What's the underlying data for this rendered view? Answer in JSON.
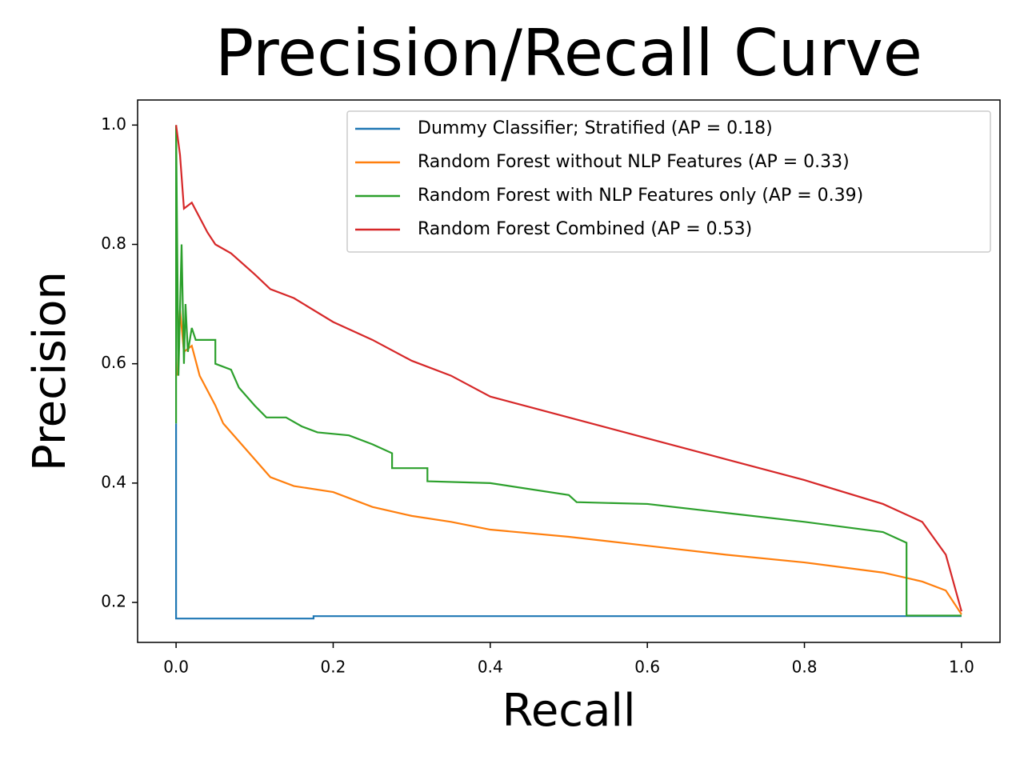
{
  "chart_data": {
    "type": "line",
    "title": "Precision/Recall Curve",
    "x_label": "Recall",
    "y_label": "Precision",
    "xlim": [
      -0.049,
      1.049
    ],
    "ylim": [
      0.133,
      1.042
    ],
    "xticks": [
      {
        "value": 0,
        "label": "0.0"
      },
      0.2,
      0.4,
      0.6,
      0.8,
      {
        "value": 1,
        "label": "1.0"
      }
    ],
    "yticks": [
      0.2,
      0.4,
      0.6,
      0.8,
      {
        "value": 1,
        "label": "1.0"
      }
    ],
    "legend": "upper right",
    "grid": false,
    "series": [
      {
        "name": "Dummy Classifier; Stratified (AP = 0.18)",
        "color": "#1f77b4",
        "x": [
          0,
          0,
          0.175,
          0.175,
          1
        ],
        "values": [
          0.5,
          0.173,
          0.173,
          0.177,
          0.177
        ]
      },
      {
        "name": "Random Forest without NLP Features (AP = 0.33)",
        "color": "#ff7f0e",
        "x": [
          0.002,
          0.005,
          0.01,
          0.02,
          0.03,
          0.05,
          0.06,
          0.08,
          0.1,
          0.12,
          0.15,
          0.2,
          0.25,
          0.3,
          0.35,
          0.4,
          0.5,
          0.6,
          0.7,
          0.8,
          0.9,
          0.95,
          0.98,
          1
        ],
        "values": [
          0.58,
          0.69,
          0.62,
          0.63,
          0.58,
          0.53,
          0.5,
          0.47,
          0.44,
          0.41,
          0.395,
          0.385,
          0.36,
          0.345,
          0.335,
          0.322,
          0.31,
          0.295,
          0.28,
          0.267,
          0.25,
          0.235,
          0.22,
          0.18
        ]
      },
      {
        "name": "Random Forest with NLP Features only (AP = 0.39)",
        "color": "#2ca02c",
        "x": [
          0,
          0,
          0.003,
          0.007,
          0.01,
          0.012,
          0.015,
          0.02,
          0.025,
          0.05,
          0.05,
          0.07,
          0.08,
          0.1,
          0.115,
          0.14,
          0.16,
          0.18,
          0.22,
          0.25,
          0.275,
          0.275,
          0.32,
          0.32,
          0.4,
          0.5,
          0.51,
          0.6,
          0.7,
          0.8,
          0.9,
          0.93,
          0.93,
          1
        ],
        "values": [
          0.5,
          1.0,
          0.58,
          0.8,
          0.6,
          0.7,
          0.62,
          0.66,
          0.64,
          0.64,
          0.6,
          0.59,
          0.56,
          0.53,
          0.51,
          0.51,
          0.495,
          0.485,
          0.48,
          0.465,
          0.45,
          0.425,
          0.425,
          0.403,
          0.4,
          0.38,
          0.368,
          0.365,
          0.35,
          0.335,
          0.318,
          0.3,
          0.178,
          0.178
        ]
      },
      {
        "name": "Random Forest Combined (AP = 0.53)",
        "color": "#d62728",
        "x": [
          0,
          0.005,
          0.01,
          0.02,
          0.04,
          0.05,
          0.07,
          0.1,
          0.12,
          0.15,
          0.2,
          0.25,
          0.3,
          0.35,
          0.4,
          0.5,
          0.6,
          0.7,
          0.8,
          0.9,
          0.95,
          0.98,
          1
        ],
        "values": [
          1.0,
          0.95,
          0.86,
          0.87,
          0.82,
          0.8,
          0.785,
          0.75,
          0.725,
          0.71,
          0.67,
          0.64,
          0.605,
          0.58,
          0.545,
          0.51,
          0.475,
          0.44,
          0.405,
          0.365,
          0.335,
          0.28,
          0.185
        ]
      }
    ]
  }
}
